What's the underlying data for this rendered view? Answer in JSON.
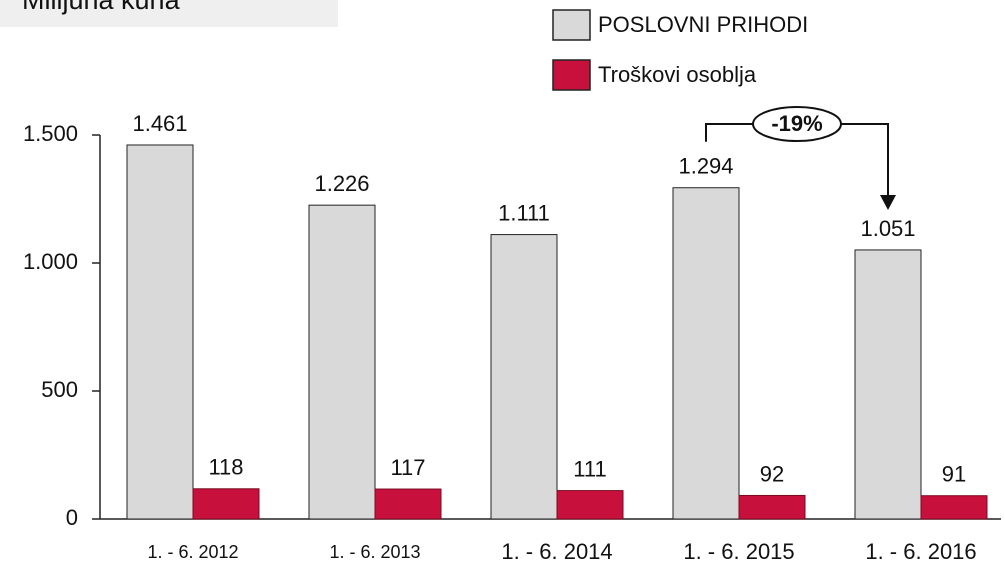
{
  "chart_data": {
    "type": "bar",
    "title": "Milijuna kuna",
    "categories": [
      "1. - 6.  2012",
      "1. - 6.  2013",
      "1. - 6.  2014",
      "1. - 6.  2015",
      "1. - 6.  2016"
    ],
    "series": [
      {
        "name": "POSLOVNI PRIHODI",
        "color": "#d9d9d9",
        "values": [
          1461,
          1226,
          1111,
          1294,
          1051
        ],
        "value_labels": [
          "1.461",
          "1.226",
          "1.111",
          "1.294",
          "1.051"
        ]
      },
      {
        "name": "Troškovi osoblja",
        "color": "#c8103c",
        "values": [
          118,
          117,
          111,
          92,
          91
        ]
      }
    ],
    "ylim": [
      0,
      1500
    ],
    "yticks": [
      0,
      500,
      {
        "value": 1000,
        "label": "1.000"
      },
      {
        "value": 1500,
        "label": "1.500"
      }
    ],
    "annotation": "-19%",
    "legend": "top-right"
  }
}
